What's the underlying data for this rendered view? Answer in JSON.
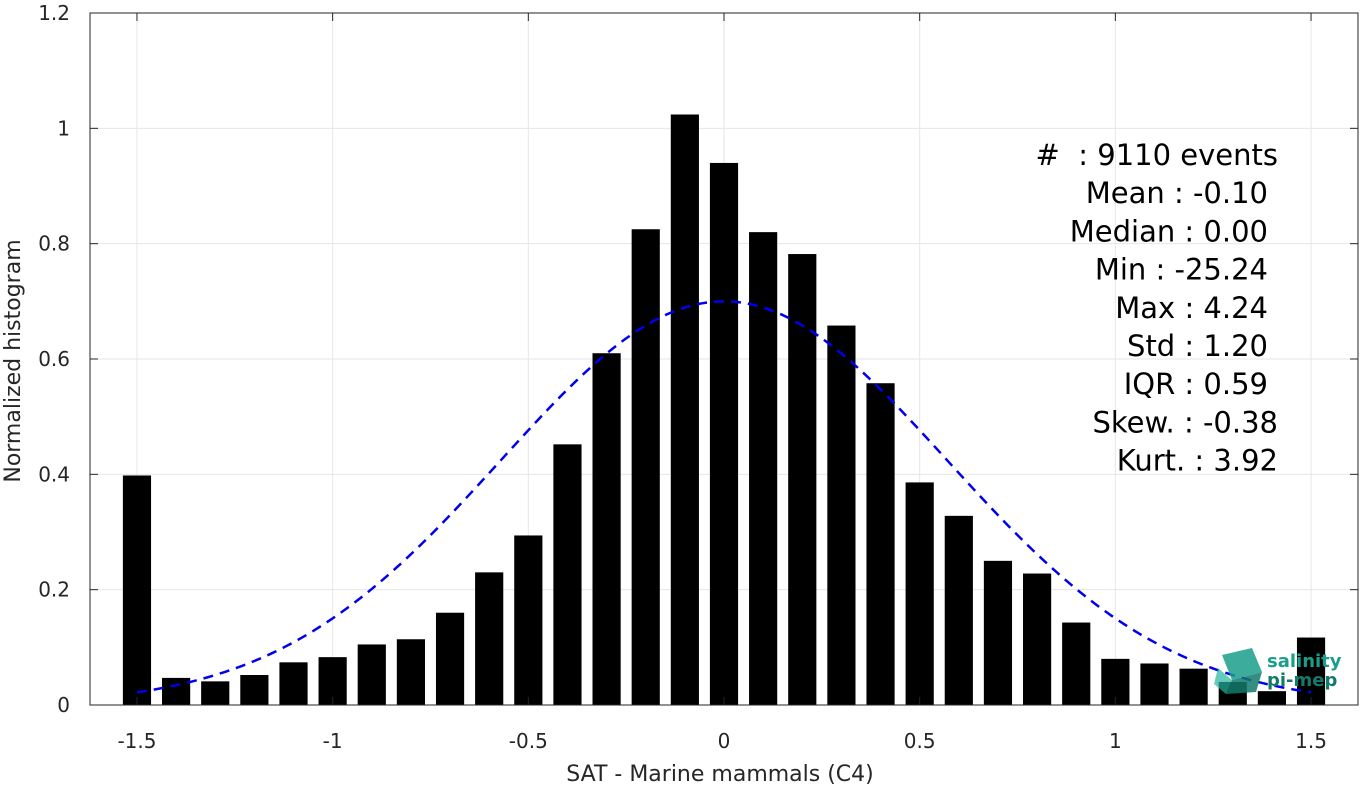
{
  "chart_data": {
    "type": "bar",
    "xlabel": "SAT - Marine mammals (C4)",
    "ylabel": "Normalized histogram",
    "xlim": [
      -1.62,
      1.62
    ],
    "ylim": [
      0,
      1.2
    ],
    "xticks": [
      -1.5,
      -1,
      -0.5,
      0,
      0.5,
      1,
      1.5
    ],
    "xtick_labels": [
      "-1.5",
      "-1",
      "-0.5",
      "0",
      "0.5",
      "1",
      "1.5"
    ],
    "yticks": [
      0,
      0.2,
      0.4,
      0.6,
      0.8,
      1,
      1.2
    ],
    "ytick_labels": [
      "0",
      "0.2",
      "0.4",
      "0.6",
      "0.8",
      "1",
      "1.2"
    ],
    "grid": true,
    "bar_color": "#000000",
    "bins": [
      -1.5,
      -1.4,
      -1.3,
      -1.2,
      -1.1,
      -1.0,
      -0.9,
      -0.8,
      -0.7,
      -0.6,
      -0.5,
      -0.4,
      -0.3,
      -0.2,
      -0.1,
      0.0,
      0.1,
      0.2,
      0.3,
      0.4,
      0.5,
      0.6,
      0.7,
      0.8,
      0.9,
      1.0,
      1.1,
      1.2,
      1.3,
      1.4,
      1.5
    ],
    "values": [
      0.398,
      0.047,
      0.041,
      0.052,
      0.074,
      0.083,
      0.105,
      0.114,
      0.16,
      0.23,
      0.294,
      0.452,
      0.61,
      0.825,
      1.024,
      0.94,
      0.82,
      0.782,
      0.658,
      0.558,
      0.386,
      0.328,
      0.25,
      0.228,
      0.143,
      0.08,
      0.072,
      0.063,
      0.04,
      0.024,
      0.117
    ],
    "fit_curve": {
      "style": "dashed",
      "color": "#0000ee",
      "mean": 0.0,
      "std": 0.57,
      "peak": 0.7,
      "x_range": [
        -1.5,
        1.5
      ]
    },
    "stats": [
      "#  : 9110 events",
      "Mean : -0.10",
      "Median : 0.00",
      "Min : -25.24",
      "Max : 4.24",
      "Std : 1.20",
      "IQR : 0.59",
      "Skew. : -0.38",
      "Kurt. : 3.92"
    ]
  },
  "logo": {
    "line1": "salinity",
    "line2": "pi-mep",
    "color": "#1a9e8c"
  }
}
